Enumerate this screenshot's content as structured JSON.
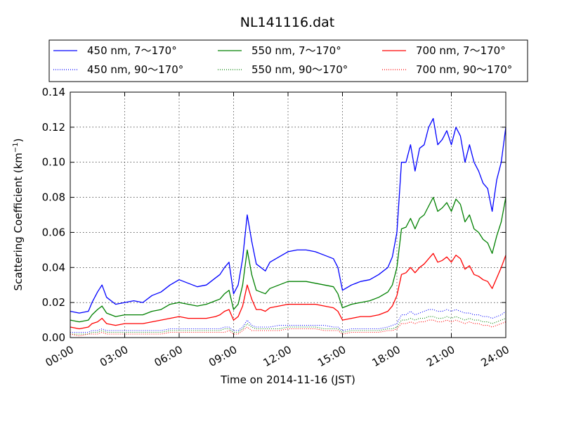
{
  "chart_data": {
    "type": "line",
    "title": "NL141116.dat",
    "xlabel": "Time on 2014-11-16 (JST)",
    "ylabel": "Scattering Coefficient (km",
    "ylabel_unit_sup": "−1",
    "ylabel_close": ")",
    "xlim": [
      0,
      24
    ],
    "ylim": [
      0.0,
      0.14
    ],
    "grid": true,
    "legend_position": "top, above plot, 3 columns",
    "x_ticks": [
      0,
      3,
      6,
      9,
      12,
      15,
      18,
      21,
      24
    ],
    "x_tick_labels": [
      "00:00",
      "03:00",
      "06:00",
      "09:00",
      "12:00",
      "15:00",
      "18:00",
      "21:00",
      "24:00"
    ],
    "y_ticks": [
      0.0,
      0.02,
      0.04,
      0.06,
      0.08,
      0.1,
      0.12,
      0.14
    ],
    "y_tick_labels": [
      "0.00",
      "0.02",
      "0.04",
      "0.06",
      "0.08",
      "0.10",
      "0.12",
      "0.14"
    ],
    "x": [
      0,
      0.5,
      1,
      1.2,
      1.5,
      1.75,
      2,
      2.5,
      3,
      3.5,
      4,
      4.5,
      5,
      5.5,
      6,
      6.5,
      7,
      7.5,
      8,
      8.25,
      8.5,
      8.75,
      9,
      9.25,
      9.5,
      9.75,
      10,
      10.25,
      10.5,
      10.75,
      11,
      11.5,
      12,
      12.5,
      13,
      13.5,
      14,
      14.5,
      14.75,
      15,
      15.5,
      16,
      16.5,
      17,
      17.5,
      17.75,
      18,
      18.25,
      18.5,
      18.75,
      19,
      19.25,
      19.5,
      19.75,
      20,
      20.25,
      20.5,
      20.75,
      21,
      21.25,
      21.5,
      21.75,
      22,
      22.25,
      22.5,
      22.75,
      23,
      23.25,
      23.5,
      23.75,
      24
    ],
    "series": [
      {
        "name": "450 nm, 7～170°",
        "color": "#0000ff",
        "style": "solid",
        "values": [
          0.015,
          0.014,
          0.015,
          0.02,
          0.026,
          0.03,
          0.023,
          0.019,
          0.02,
          0.021,
          0.02,
          0.024,
          0.026,
          0.03,
          0.033,
          0.031,
          0.029,
          0.03,
          0.034,
          0.036,
          0.04,
          0.043,
          0.025,
          0.03,
          0.045,
          0.07,
          0.055,
          0.042,
          0.04,
          0.038,
          0.043,
          0.046,
          0.049,
          0.05,
          0.05,
          0.049,
          0.047,
          0.045,
          0.04,
          0.027,
          0.03,
          0.032,
          0.033,
          0.036,
          0.04,
          0.046,
          0.06,
          0.1,
          0.1,
          0.11,
          0.095,
          0.108,
          0.11,
          0.12,
          0.125,
          0.11,
          0.113,
          0.118,
          0.11,
          0.12,
          0.115,
          0.1,
          0.11,
          0.1,
          0.095,
          0.088,
          0.085,
          0.072,
          0.09,
          0.1,
          0.12
        ]
      },
      {
        "name": "550 nm, 7～170°",
        "color": "#008000",
        "style": "solid",
        "values": [
          0.01,
          0.009,
          0.01,
          0.013,
          0.016,
          0.018,
          0.014,
          0.012,
          0.013,
          0.013,
          0.013,
          0.015,
          0.016,
          0.019,
          0.02,
          0.019,
          0.018,
          0.019,
          0.021,
          0.022,
          0.025,
          0.027,
          0.016,
          0.019,
          0.03,
          0.05,
          0.036,
          0.027,
          0.026,
          0.025,
          0.028,
          0.03,
          0.032,
          0.032,
          0.032,
          0.031,
          0.03,
          0.029,
          0.025,
          0.017,
          0.019,
          0.02,
          0.021,
          0.023,
          0.026,
          0.03,
          0.04,
          0.062,
          0.063,
          0.068,
          0.062,
          0.068,
          0.07,
          0.075,
          0.08,
          0.072,
          0.074,
          0.077,
          0.072,
          0.079,
          0.076,
          0.066,
          0.07,
          0.062,
          0.06,
          0.056,
          0.054,
          0.048,
          0.058,
          0.066,
          0.08
        ]
      },
      {
        "name": "700 nm, 7～170°",
        "color": "#ff0000",
        "style": "solid",
        "values": [
          0.006,
          0.005,
          0.006,
          0.008,
          0.009,
          0.011,
          0.008,
          0.007,
          0.008,
          0.008,
          0.008,
          0.009,
          0.01,
          0.011,
          0.012,
          0.011,
          0.011,
          0.011,
          0.012,
          0.013,
          0.015,
          0.016,
          0.01,
          0.012,
          0.018,
          0.03,
          0.022,
          0.016,
          0.016,
          0.015,
          0.017,
          0.018,
          0.019,
          0.019,
          0.019,
          0.019,
          0.018,
          0.017,
          0.015,
          0.01,
          0.011,
          0.012,
          0.012,
          0.013,
          0.015,
          0.018,
          0.024,
          0.036,
          0.037,
          0.04,
          0.037,
          0.04,
          0.042,
          0.045,
          0.048,
          0.043,
          0.044,
          0.046,
          0.043,
          0.047,
          0.045,
          0.039,
          0.041,
          0.036,
          0.035,
          0.033,
          0.032,
          0.028,
          0.034,
          0.04,
          0.047
        ]
      },
      {
        "name": "450 nm, 90～170°",
        "color": "#0000ff",
        "style": "dotted",
        "values": [
          0.003,
          0.003,
          0.003,
          0.004,
          0.004,
          0.005,
          0.004,
          0.004,
          0.004,
          0.004,
          0.004,
          0.004,
          0.004,
          0.005,
          0.005,
          0.005,
          0.005,
          0.005,
          0.005,
          0.005,
          0.006,
          0.006,
          0.004,
          0.004,
          0.006,
          0.01,
          0.007,
          0.006,
          0.006,
          0.006,
          0.006,
          0.007,
          0.007,
          0.007,
          0.007,
          0.007,
          0.007,
          0.006,
          0.006,
          0.004,
          0.005,
          0.005,
          0.005,
          0.005,
          0.006,
          0.007,
          0.008,
          0.013,
          0.013,
          0.015,
          0.013,
          0.014,
          0.015,
          0.016,
          0.016,
          0.015,
          0.015,
          0.016,
          0.015,
          0.016,
          0.015,
          0.014,
          0.014,
          0.013,
          0.013,
          0.012,
          0.012,
          0.011,
          0.012,
          0.013,
          0.015
        ]
      },
      {
        "name": "550 nm, 90～170°",
        "color": "#008000",
        "style": "dotted",
        "values": [
          0.002,
          0.002,
          0.002,
          0.003,
          0.003,
          0.004,
          0.003,
          0.003,
          0.003,
          0.003,
          0.003,
          0.003,
          0.003,
          0.004,
          0.004,
          0.004,
          0.004,
          0.004,
          0.004,
          0.004,
          0.005,
          0.005,
          0.003,
          0.003,
          0.005,
          0.008,
          0.006,
          0.005,
          0.005,
          0.005,
          0.005,
          0.005,
          0.006,
          0.006,
          0.006,
          0.006,
          0.005,
          0.005,
          0.005,
          0.003,
          0.004,
          0.004,
          0.004,
          0.004,
          0.005,
          0.005,
          0.006,
          0.01,
          0.01,
          0.011,
          0.01,
          0.011,
          0.011,
          0.012,
          0.012,
          0.011,
          0.011,
          0.012,
          0.011,
          0.012,
          0.011,
          0.01,
          0.011,
          0.01,
          0.01,
          0.009,
          0.009,
          0.008,
          0.009,
          0.01,
          0.011
        ]
      },
      {
        "name": "700 nm, 90～170°",
        "color": "#ff0000",
        "style": "dotted",
        "values": [
          0.002,
          0.001,
          0.002,
          0.002,
          0.002,
          0.003,
          0.002,
          0.002,
          0.002,
          0.002,
          0.002,
          0.002,
          0.002,
          0.003,
          0.003,
          0.003,
          0.003,
          0.003,
          0.003,
          0.003,
          0.003,
          0.004,
          0.002,
          0.002,
          0.004,
          0.006,
          0.004,
          0.004,
          0.004,
          0.004,
          0.004,
          0.004,
          0.005,
          0.005,
          0.005,
          0.005,
          0.004,
          0.004,
          0.004,
          0.002,
          0.003,
          0.003,
          0.003,
          0.003,
          0.004,
          0.004,
          0.005,
          0.008,
          0.008,
          0.009,
          0.008,
          0.009,
          0.009,
          0.01,
          0.01,
          0.009,
          0.009,
          0.01,
          0.009,
          0.01,
          0.009,
          0.008,
          0.009,
          0.008,
          0.008,
          0.007,
          0.007,
          0.006,
          0.007,
          0.008,
          0.009
        ]
      }
    ]
  }
}
